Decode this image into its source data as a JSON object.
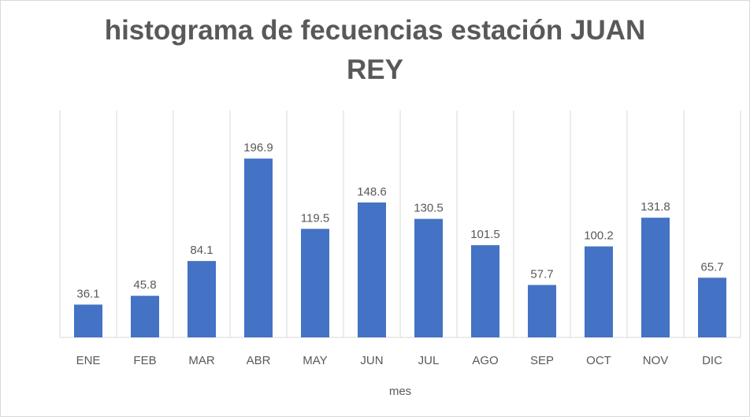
{
  "chart_data": {
    "type": "bar",
    "title": "histograma de fecuencias estación JUAN REY",
    "x_label": "mes",
    "categories": [
      "ENE",
      "FEB",
      "MAR",
      "ABR",
      "MAY",
      "JUN",
      "JUL",
      "AGO",
      "SEP",
      "OCT",
      "NOV",
      "DIC"
    ],
    "values": [
      36.1,
      45.8,
      84.1,
      196.9,
      119.5,
      148.6,
      130.5,
      101.5,
      57.7,
      100.2,
      131.8,
      65.7
    ],
    "color": "#4472c4",
    "ylim": [
      0,
      250
    ]
  }
}
